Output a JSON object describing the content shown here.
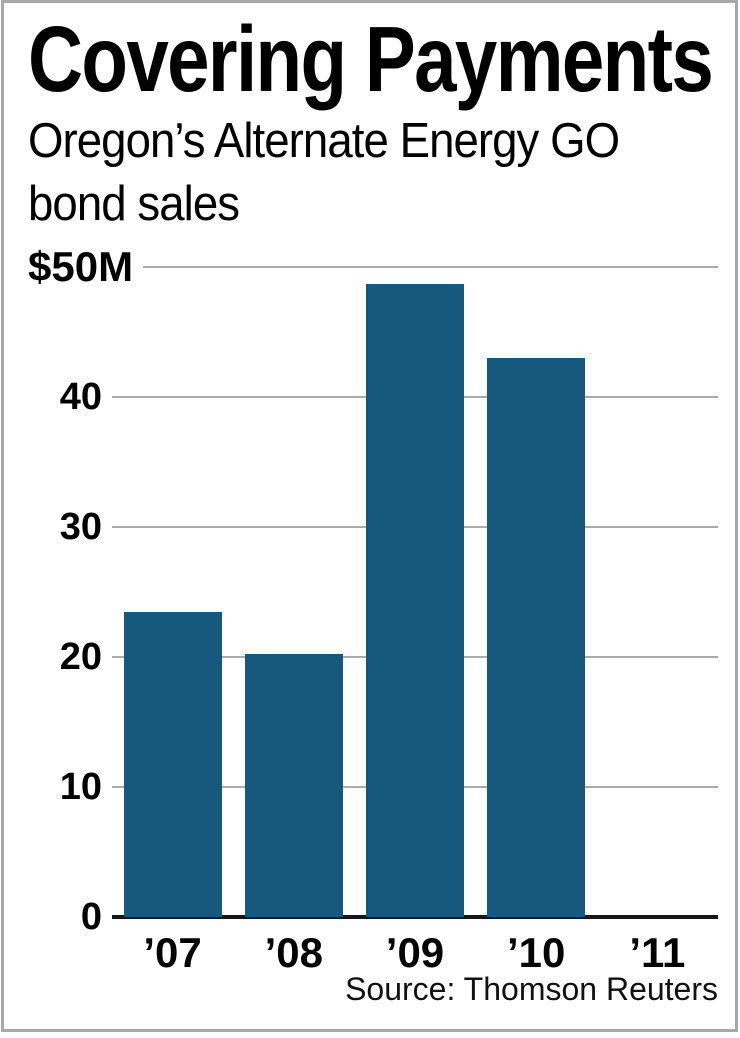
{
  "header": {
    "title": "Covering Payments",
    "subtitle_lines": [
      "Oregon’s Alternate Energy GO",
      "bond sales"
    ]
  },
  "chart_data": {
    "type": "bar",
    "title": "Covering Payments",
    "subtitle": "Oregon’s Alternate Energy GO bond sales",
    "categories": [
      "’07",
      "’08",
      "’09",
      "’10",
      "’11"
    ],
    "values": [
      23.5,
      20.2,
      48.7,
      43,
      0
    ],
    "yticks": [
      {
        "value": 50,
        "label": "$50M"
      },
      {
        "value": 40,
        "label": "40"
      },
      {
        "value": 30,
        "label": "30"
      },
      {
        "value": 20,
        "label": "20"
      },
      {
        "value": 10,
        "label": "10"
      },
      {
        "value": 0,
        "label": "0"
      }
    ],
    "ylim": [
      0,
      50
    ],
    "grid": true,
    "legend": false,
    "bar_color": "#16597D",
    "gridline_color": "#ABABAB",
    "axis_color": "#161616"
  },
  "footer": {
    "source": "Source: Thomson Reuters"
  }
}
